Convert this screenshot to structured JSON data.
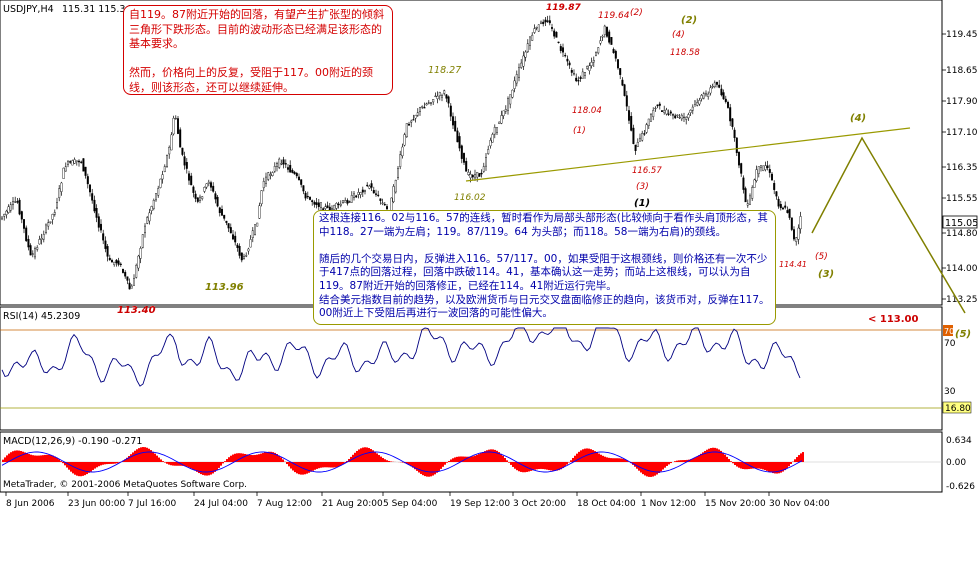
{
  "header": {
    "symbol": "USDJPY,H4",
    "ohlc": "115.31 115.34"
  },
  "price_axis": [
    "119.45",
    "118.65",
    "117.90",
    "117.10",
    "116.35",
    "115.55",
    "114.80",
    "114.00",
    "113.25"
  ],
  "current_price": "115.05",
  "target_label": "< 113.00",
  "wave_labels": [
    {
      "text": "119.87",
      "color": "#cc0000",
      "bold": true
    },
    {
      "text": "119.64",
      "color": "#cc0000",
      "bold": false
    },
    {
      "text": "(2)",
      "color": "#cc0000",
      "bold": false
    },
    {
      "text": "(2)",
      "color": "#808000",
      "bold": true
    },
    {
      "text": "(4)",
      "color": "#cc0000",
      "bold": false
    },
    {
      "text": "118.58",
      "color": "#cc0000",
      "bold": false
    },
    {
      "text": "118.27",
      "color": "#808000",
      "bold": false
    },
    {
      "text": "118.04",
      "color": "#cc0000",
      "bold": false
    },
    {
      "text": "(1)",
      "color": "#cc0000",
      "bold": false
    },
    {
      "text": "116.57",
      "color": "#cc0000",
      "bold": false
    },
    {
      "text": "(3)",
      "color": "#cc0000",
      "bold": false
    },
    {
      "text": "(1)",
      "color": "#000000",
      "bold": true
    },
    {
      "text": "116.02",
      "color": "#808000",
      "bold": false
    },
    {
      "text": "(4)",
      "color": "#808000",
      "bold": true
    },
    {
      "text": "(5)",
      "color": "#cc0000",
      "bold": false
    },
    {
      "text": "114.41",
      "color": "#cc0000",
      "bold": false
    },
    {
      "text": "(3)",
      "color": "#808000",
      "bold": true
    },
    {
      "text": "113.96",
      "color": "#808000",
      "bold": true
    },
    {
      "text": "113.40",
      "color": "#cc0000",
      "bold": true
    },
    {
      "text": "(5)",
      "color": "#808000",
      "bold": true
    }
  ],
  "notes": {
    "top": "自119。87附近开始的回落，有望产生扩张型的倾斜三角形下跌形态。目前的波动形态已经满足该形态的基本要求。\n\n然而，价格向上的反复，受阻于117。00附近的颈线，则该形态，还可以继续延伸。",
    "bottom": "这根连接116。02与116。57的连线，暂时看作为局部头部形态(比较倾向于看作头肩顶形态，其中118。27一端为左肩；119。87/119。64 为头部；而118。58一端为右肩)的颈线。\n\n随后的几个交易日内，反弹进入116。57/117。00，如果受阻于这根颈线，则价格还有一次不少于417点的回落过程，回落中跌破114。41，基本确认这一走势；而站上这根线，可以认为自119。87附近开始的回落修正，已经在114。41附近运行完毕。\n结合美元指数目前的趋势，以及欧洲货币与日元交叉盘面临修正的趋向，该货币对，反弹在117。00附近上下受阻后再进行一波回落的可能性偏大。"
  },
  "rsi": {
    "label": "RSI(14) 45.2309",
    "axis": [
      "70",
      "30"
    ],
    "level_label": "16.80",
    "overbought_marker": "70"
  },
  "macd": {
    "label": "MACD(12,26,9) -0.190 -0.271",
    "axis": [
      "0.634",
      "0.00",
      "-0.626"
    ],
    "copyright": "MetaTrader, © 2001-2006 MetaQuotes Software Corp."
  },
  "time_axis": [
    "8 Jun 2006",
    "23 Jun 00:00",
    "7 Jul 16:00",
    "24 Jul 04:00",
    "7 Aug 12:00",
    "21 Aug 20:00",
    "5 Sep 04:00",
    "19 Sep 12:00",
    "3 Oct 20:00",
    "18 Oct 04:00",
    "1 Nov 12:00",
    "15 Nov 20:00",
    "30 Nov 04:00"
  ],
  "colors": {
    "bull_candle": "#ffffff",
    "bear_candle": "#000000",
    "neckline": "#9a9a00",
    "projection": "#808000",
    "rsi_line": "#000080",
    "macd_hist": "#ff0000",
    "macd_signal": "#0000ff",
    "axis_text": "#000000",
    "level_line": "#c0c0a0",
    "rsi_level_bg": "#ffff80",
    "price_marker_bg": "#ffffff",
    "target_text": "#cc0000"
  }
}
